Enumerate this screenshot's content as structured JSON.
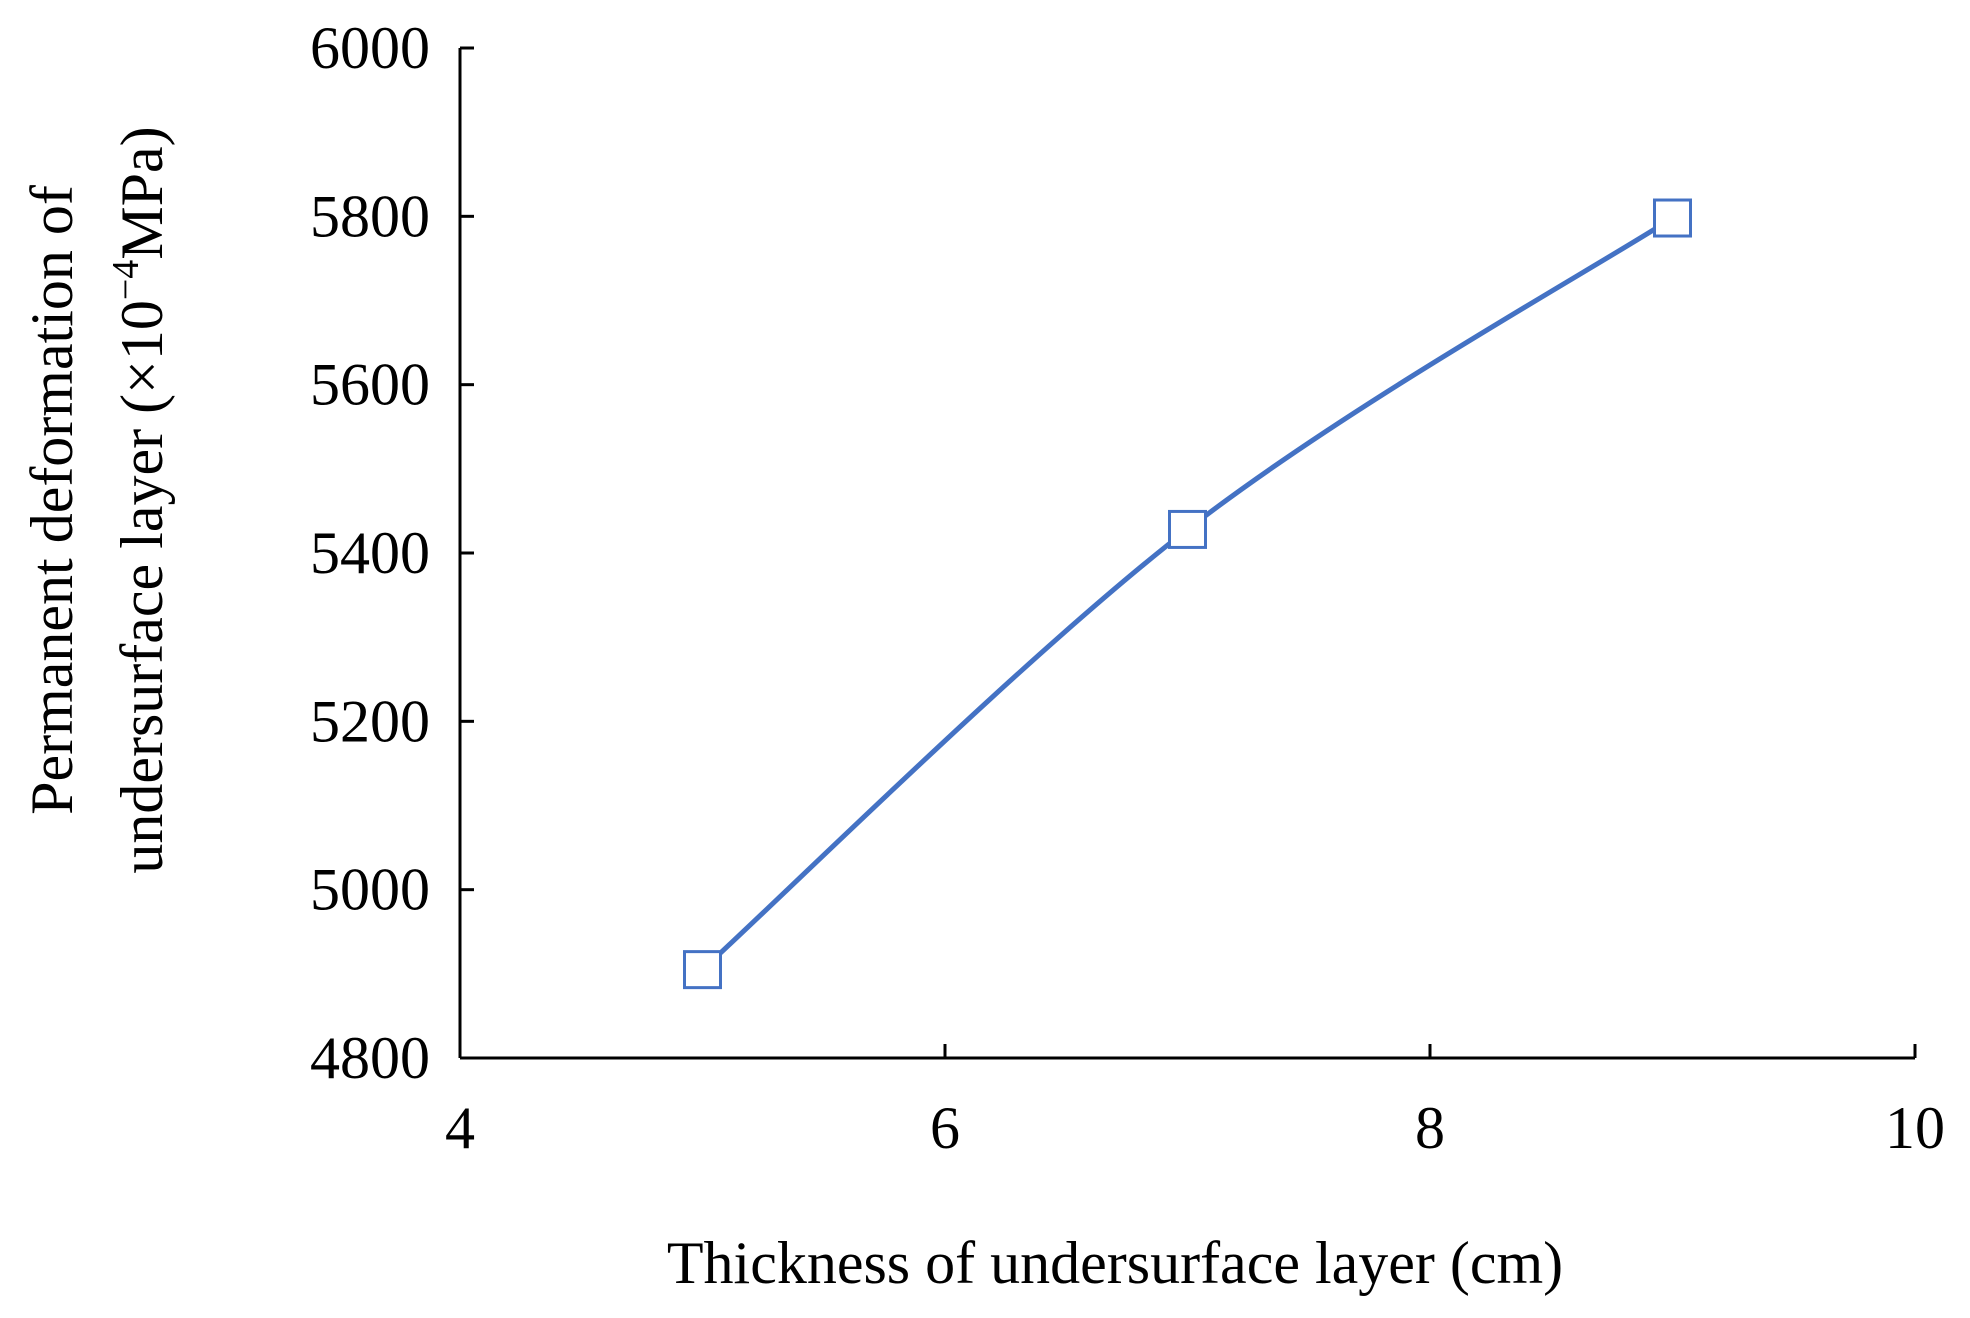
{
  "chart_data": {
    "type": "line",
    "title": "",
    "xlabel": "Thickness of undersurface layer (cm)",
    "ylabel_line1": "Permanent deformation of",
    "ylabel_line2_prefix": "undersurface layer (×10",
    "ylabel_line2_exponent": "−4",
    "ylabel_line2_suffix": "MPa)",
    "xlim": [
      4,
      10
    ],
    "ylim": [
      4800,
      6000
    ],
    "xticks": [
      4,
      6,
      8,
      10
    ],
    "yticks": [
      4800,
      5000,
      5200,
      5400,
      5600,
      5800,
      6000
    ],
    "grid": false,
    "legend": "none",
    "series": [
      {
        "x": [
          5,
          7,
          9
        ],
        "y": [
          4905,
          5428,
          5798
        ],
        "color": "#4472C4",
        "marker": "hollow-square",
        "smooth": true
      }
    ]
  }
}
